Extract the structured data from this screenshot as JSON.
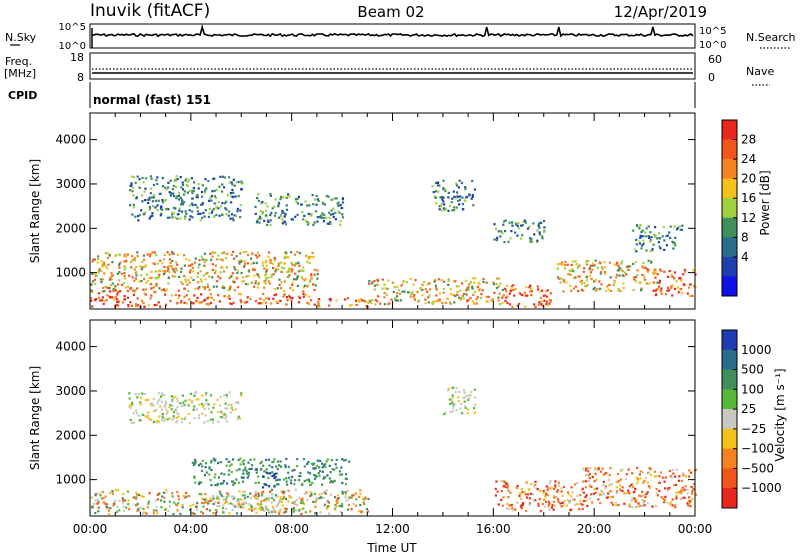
{
  "header": {
    "station": "Inuvik (fitACF)",
    "beam": "Beam 02",
    "date": "12/Apr/2019"
  },
  "status_panels": {
    "nsky_label": "N.Sky",
    "nsearch_label": "N.Search",
    "noise_ticks_left": [
      "10^5",
      "10^0"
    ],
    "noise_ticks_right": [
      "10^5",
      "10^0"
    ],
    "freq_label": "Freq.",
    "freq_unit": "[MHz]",
    "freq_ticks": [
      "18",
      "8"
    ],
    "nave_label": "Nave",
    "nave_ticks": [
      "60",
      "0"
    ],
    "cpid_label": "CPID",
    "cpid_value": "normal (fast) 151"
  },
  "chart_data": [
    {
      "type": "heatmap",
      "name": "power",
      "ylabel": "Slant Range [km]",
      "xlabel": "",
      "xlim": [
        0,
        24
      ],
      "ylim": [
        180,
        4600
      ],
      "yticks": [
        1000,
        2000,
        3000,
        4000
      ],
      "colorbar": {
        "label": "Power [dB]",
        "ticks": [
          "28",
          "24",
          "20",
          "16",
          "12",
          "8",
          "4"
        ],
        "colors": [
          "#e8281e",
          "#f2561c",
          "#f5821f",
          "#f5c21a",
          "#9fd040",
          "#3f8f5c",
          "#2a6e8c",
          "#1d3fb0",
          "#1010e8"
        ]
      },
      "regions": [
        {
          "t0": 0.0,
          "t1": 3.0,
          "r0": 250,
          "r1": 700,
          "level": "high"
        },
        {
          "t0": 3.0,
          "t1": 9.0,
          "r0": 300,
          "r1": 550,
          "level": "high"
        },
        {
          "t0": 9.0,
          "t1": 11.0,
          "r0": 250,
          "r1": 450,
          "level": "high"
        },
        {
          "t0": 16.3,
          "t1": 18.3,
          "r0": 250,
          "r1": 750,
          "level": "high"
        },
        {
          "t0": 22.3,
          "t1": 24.0,
          "r0": 500,
          "r1": 1100,
          "level": "high"
        },
        {
          "t0": 0.0,
          "t1": 9.0,
          "r0": 600,
          "r1": 1500,
          "level": "medium"
        },
        {
          "t0": 11.0,
          "t1": 16.5,
          "r0": 300,
          "r1": 900,
          "level": "medium"
        },
        {
          "t0": 18.5,
          "t1": 22.5,
          "r0": 600,
          "r1": 1300,
          "level": "medium"
        },
        {
          "t0": 1.5,
          "t1": 6.0,
          "r0": 2200,
          "r1": 3200,
          "level": "low"
        },
        {
          "t0": 6.5,
          "t1": 10.0,
          "r0": 2100,
          "r1": 2800,
          "level": "low"
        },
        {
          "t0": 13.5,
          "t1": 15.3,
          "r0": 2400,
          "r1": 3100,
          "level": "low"
        },
        {
          "t0": 16.0,
          "t1": 18.0,
          "r0": 1700,
          "r1": 2200,
          "level": "low"
        },
        {
          "t0": 21.5,
          "t1": 23.5,
          "r0": 1500,
          "r1": 2100,
          "level": "low"
        }
      ]
    },
    {
      "type": "heatmap",
      "name": "velocity",
      "ylabel": "Slant Range [km]",
      "xlabel": "Time UT",
      "xlim": [
        0,
        24
      ],
      "ylim": [
        180,
        4600
      ],
      "xticks": [
        "00:00",
        "04:00",
        "08:00",
        "12:00",
        "16:00",
        "20:00",
        "00:00"
      ],
      "yticks": [
        1000,
        2000,
        3000,
        4000
      ],
      "colorbar": {
        "label": "Velocity [m s⁻¹]",
        "ticks": [
          "1000",
          "500",
          "100",
          "25",
          "−25",
          "−100",
          "−500",
          "−1000"
        ],
        "colors": [
          "#1e3ab5",
          "#2a6e8c",
          "#3f8f5c",
          "#56b83a",
          "#c8c8c0",
          "#f5c21a",
          "#f5821f",
          "#f2561c",
          "#e8281e"
        ]
      },
      "regions": [
        {
          "t0": 0.0,
          "t1": 11.0,
          "r0": 250,
          "r1": 800,
          "level": "mixed"
        },
        {
          "t0": 4.0,
          "t1": 10.3,
          "r0": 900,
          "r1": 1500,
          "level": "positive"
        },
        {
          "t0": 5.0,
          "t1": 8.5,
          "r0": 300,
          "r1": 650,
          "level": "near-zero"
        },
        {
          "t0": 6.8,
          "t1": 7.3,
          "r0": 800,
          "r1": 1200,
          "level": "strong-positive"
        },
        {
          "t0": 16.0,
          "t1": 19.5,
          "r0": 300,
          "r1": 1000,
          "level": "negative"
        },
        {
          "t0": 19.5,
          "t1": 24.0,
          "r0": 400,
          "r1": 1300,
          "level": "negative"
        },
        {
          "t0": 1.5,
          "t1": 6.0,
          "r0": 2300,
          "r1": 3000,
          "level": "near-zero"
        },
        {
          "t0": 14.0,
          "t1": 15.3,
          "r0": 2500,
          "r1": 3100,
          "level": "near-zero"
        }
      ]
    }
  ],
  "colors": {
    "frame": "#000000",
    "background": "#ffffff"
  }
}
